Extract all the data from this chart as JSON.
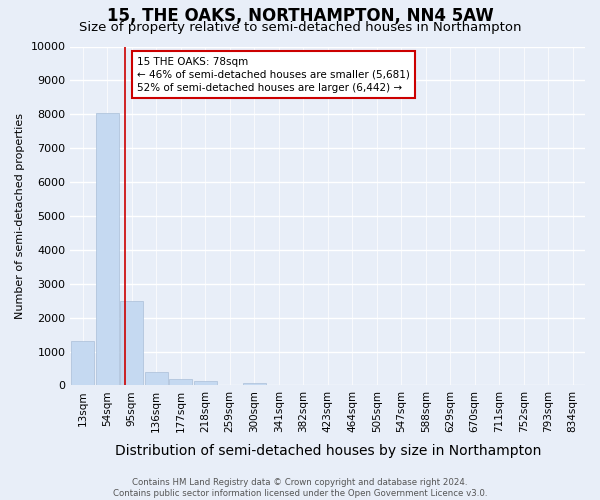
{
  "title": "15, THE OAKS, NORTHAMPTON, NN4 5AW",
  "subtitle": "Size of property relative to semi-detached houses in Northampton",
  "xlabel": "Distribution of semi-detached houses by size in Northampton",
  "ylabel": "Number of semi-detached properties",
  "footer_line1": "Contains HM Land Registry data © Crown copyright and database right 2024.",
  "footer_line2": "Contains public sector information licensed under the Open Government Licence v3.0.",
  "categories": [
    "13sqm",
    "54sqm",
    "95sqm",
    "136sqm",
    "177sqm",
    "218sqm",
    "259sqm",
    "300sqm",
    "341sqm",
    "382sqm",
    "423sqm",
    "464sqm",
    "505sqm",
    "547sqm",
    "588sqm",
    "629sqm",
    "670sqm",
    "711sqm",
    "752sqm",
    "793sqm",
    "834sqm"
  ],
  "values": [
    1300,
    8050,
    2500,
    400,
    180,
    130,
    0,
    70,
    0,
    0,
    0,
    0,
    0,
    0,
    0,
    0,
    0,
    0,
    0,
    0,
    0
  ],
  "bar_color": "#c5d9f1",
  "bar_edge_color": "#aabfd8",
  "vline_x": 1.72,
  "vline_color": "#cc0000",
  "annotation_text": "15 THE OAKS: 78sqm\n← 46% of semi-detached houses are smaller (5,681)\n52% of semi-detached houses are larger (6,442) →",
  "annotation_box_color": "#ffffff",
  "annotation_box_edge": "#cc0000",
  "ylim": [
    0,
    10000
  ],
  "yticks": [
    0,
    1000,
    2000,
    3000,
    4000,
    5000,
    6000,
    7000,
    8000,
    9000,
    10000
  ],
  "background_color": "#e8eef8",
  "grid_color": "#ffffff",
  "title_fontsize": 12,
  "subtitle_fontsize": 9.5,
  "axis_label_fontsize": 9,
  "tick_fontsize": 7.5,
  "ylabel_fontsize": 8
}
